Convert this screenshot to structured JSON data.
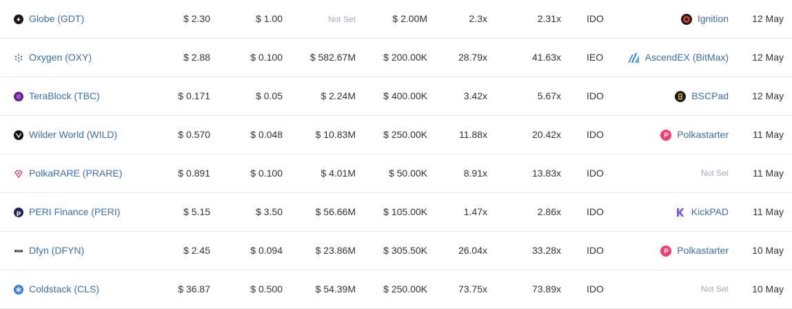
{
  "rows": [
    {
      "name": "Globe (GDT)",
      "icon": "globe-logo-icon",
      "price": "$ 2.30",
      "ico_price": "$ 1.00",
      "market_cap": "Not Set",
      "raise": "$ 2.00M",
      "roi_ico": "2.3x",
      "roi_ath": "2.31x",
      "type": "IDO",
      "platform": "Ignition",
      "platform_icon": "ignition-icon",
      "date": "12 May"
    },
    {
      "name": "Oxygen (OXY)",
      "icon": "oxygen-logo-icon",
      "price": "$ 2.88",
      "ico_price": "$ 0.100",
      "market_cap": "$ 582.67M",
      "raise": "$ 200.00K",
      "roi_ico": "28.79x",
      "roi_ath": "41.63x",
      "type": "IEO",
      "platform": "AscendEX (BitMax)",
      "platform_icon": "ascendex-icon",
      "date": "12 May"
    },
    {
      "name": "TeraBlock (TBC)",
      "icon": "terablock-logo-icon",
      "price": "$ 0.171",
      "ico_price": "$ 0.05",
      "market_cap": "$ 2.24M",
      "raise": "$ 400.00K",
      "roi_ico": "3.42x",
      "roi_ath": "5.67x",
      "type": "IDO",
      "platform": "BSCPad",
      "platform_icon": "bscpad-icon",
      "date": "12 May"
    },
    {
      "name": "Wilder World (WILD)",
      "icon": "wilder-world-logo-icon",
      "price": "$ 0.570",
      "ico_price": "$ 0.048",
      "market_cap": "$ 10.83M",
      "raise": "$ 250.00K",
      "roi_ico": "11.88x",
      "roi_ath": "20.42x",
      "type": "IDO",
      "platform": "Polkastarter",
      "platform_icon": "polkastarter-icon",
      "date": "11 May"
    },
    {
      "name": "PolkaRARE (PRARE)",
      "icon": "polkarare-logo-icon",
      "price": "$ 0.891",
      "ico_price": "$ 0.100",
      "market_cap": "$ 4.01M",
      "raise": "$ 50.00K",
      "roi_ico": "8.91x",
      "roi_ath": "13.83x",
      "type": "IDO",
      "platform": "Not Set",
      "platform_icon": "",
      "date": "11 May"
    },
    {
      "name": "PERI Finance (PERI)",
      "icon": "peri-finance-logo-icon",
      "price": "$ 5.15",
      "ico_price": "$ 3.50",
      "market_cap": "$ 56.66M",
      "raise": "$ 105.00K",
      "roi_ico": "1.47x",
      "roi_ath": "2.86x",
      "type": "IDO",
      "platform": "KickPAD",
      "platform_icon": "kickpad-icon",
      "date": "11 May"
    },
    {
      "name": "Dfyn (DFYN)",
      "icon": "dfyn-logo-icon",
      "price": "$ 2.45",
      "ico_price": "$ 0.094",
      "market_cap": "$ 23.86M",
      "raise": "$ 305.50K",
      "roi_ico": "26.04x",
      "roi_ath": "33.28x",
      "type": "IDO",
      "platform": "Polkastarter",
      "platform_icon": "polkastarter-icon",
      "date": "10 May"
    },
    {
      "name": "Coldstack (CLS)",
      "icon": "coldstack-logo-icon",
      "price": "$ 36.87",
      "ico_price": "$ 0.500",
      "market_cap": "$ 54.39M",
      "raise": "$ 250.00K",
      "roi_ico": "73.75x",
      "roi_ath": "73.89x",
      "type": "IDO",
      "platform": "Not Set",
      "platform_icon": "",
      "date": "10 May"
    }
  ],
  "colors": {
    "link": "#3a6fb0",
    "text": "#333333",
    "muted": "#a6acb3",
    "divider": "#e6e8ea"
  }
}
